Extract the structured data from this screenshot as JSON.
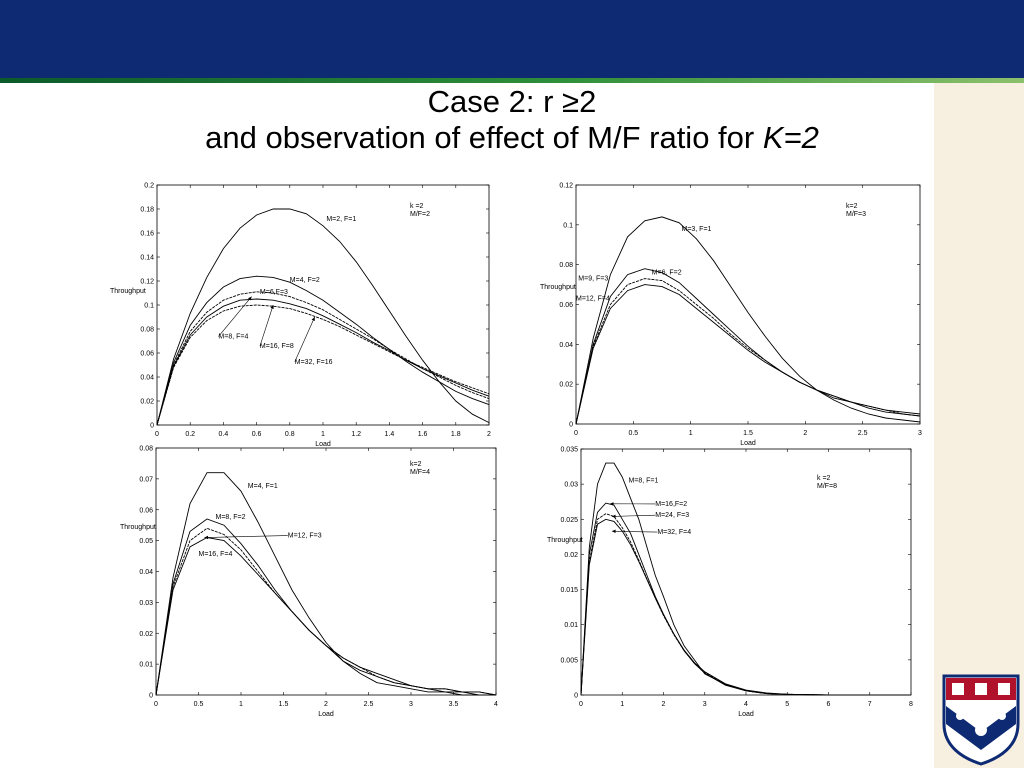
{
  "slide": {
    "title_line1": "Case 2: r ≥2",
    "title_line2_prefix": "and observation of effect of M/F ratio for ",
    "title_line2_italic": "K=2",
    "colors": {
      "header": "#0d2a73",
      "rule": "#2f8f3a",
      "strip": "#f7f0e0"
    },
    "logo": "university-shield-icon"
  },
  "chart_data": [
    {
      "type": "line",
      "xlabel": "Load",
      "ylabel": "Throughput",
      "xlim": [
        0,
        2
      ],
      "ylim": [
        0,
        0.2
      ],
      "xticks": [
        "0",
        "0.2",
        "0.4",
        "0.6",
        "0.8",
        "1",
        "1.2",
        "1.4",
        "1.6",
        "1.8",
        "2"
      ],
      "yticks": [
        "0",
        "0.02",
        "0.04",
        "0.06",
        "0.08",
        "0.1",
        "0.12",
        "0.14",
        "0.16",
        "0.18",
        "0.2"
      ],
      "legend": [
        "k =2",
        "M/F=2"
      ],
      "legend_position": "top-right",
      "series": [
        {
          "name": "M=2, F=1",
          "x": [
            0,
            0.1,
            0.2,
            0.3,
            0.4,
            0.5,
            0.6,
            0.7,
            0.8,
            0.9,
            1.0,
            1.1,
            1.2,
            1.3,
            1.4,
            1.5,
            1.6,
            1.7,
            1.8,
            1.9,
            2.0
          ],
          "y": [
            0,
            0.055,
            0.093,
            0.123,
            0.147,
            0.164,
            0.175,
            0.18,
            0.18,
            0.176,
            0.166,
            0.153,
            0.136,
            0.116,
            0.095,
            0.074,
            0.054,
            0.036,
            0.02,
            0.009,
            0.002
          ]
        },
        {
          "name": "M=4, F=2",
          "x": [
            0,
            0.1,
            0.2,
            0.3,
            0.4,
            0.5,
            0.6,
            0.7,
            0.8,
            0.9,
            1.0,
            1.1,
            1.2,
            1.3,
            1.4,
            1.5,
            1.6,
            1.7,
            1.8,
            1.9,
            2.0
          ],
          "y": [
            0,
            0.052,
            0.083,
            0.102,
            0.115,
            0.122,
            0.124,
            0.123,
            0.119,
            0.112,
            0.104,
            0.094,
            0.084,
            0.073,
            0.063,
            0.053,
            0.044,
            0.036,
            0.028,
            0.022,
            0.017
          ]
        },
        {
          "name": "M=8,F=4",
          "x": [
            0,
            0.1,
            0.2,
            0.3,
            0.4,
            0.5,
            0.6,
            0.7,
            0.8,
            0.9,
            1.0,
            1.1,
            1.2,
            1.3,
            1.4,
            1.5,
            1.6,
            1.7,
            1.8,
            1.9,
            2.0
          ],
          "y": [
            0,
            0.05,
            0.078,
            0.094,
            0.104,
            0.109,
            0.111,
            0.11,
            0.107,
            0.102,
            0.096,
            0.088,
            0.08,
            0.072,
            0.063,
            0.055,
            0.047,
            0.04,
            0.033,
            0.027,
            0.022
          ]
        },
        {
          "name": "M=16, F=8",
          "x": [
            0,
            0.1,
            0.2,
            0.3,
            0.4,
            0.5,
            0.6,
            0.7,
            0.8,
            0.9,
            1.0,
            1.1,
            1.2,
            1.3,
            1.4,
            1.5,
            1.6,
            1.7,
            1.8,
            1.9,
            2.0
          ],
          "y": [
            0,
            0.049,
            0.075,
            0.09,
            0.099,
            0.104,
            0.105,
            0.104,
            0.101,
            0.097,
            0.091,
            0.084,
            0.077,
            0.069,
            0.062,
            0.054,
            0.047,
            0.041,
            0.035,
            0.029,
            0.024
          ]
        },
        {
          "name": "M=32, F=16",
          "x": [
            0,
            0.1,
            0.2,
            0.3,
            0.4,
            0.5,
            0.6,
            0.7,
            0.8,
            0.9,
            1.0,
            1.1,
            1.2,
            1.3,
            1.4,
            1.5,
            1.6,
            1.7,
            1.8,
            1.9,
            2.0
          ],
          "y": [
            0,
            0.048,
            0.073,
            0.087,
            0.095,
            0.099,
            0.1,
            0.099,
            0.097,
            0.093,
            0.088,
            0.082,
            0.075,
            0.068,
            0.061,
            0.054,
            0.048,
            0.042,
            0.036,
            0.031,
            0.026
          ]
        }
      ],
      "annotations": [
        {
          "text": "M=2, F=1",
          "x": 1.02,
          "y": 0.17
        },
        {
          "text": "M=4, F=2",
          "x": 0.8,
          "y": 0.119
        },
        {
          "text": "M=6,F=3",
          "x": 0.62,
          "y": 0.109
        },
        {
          "text": "M=8, F=4",
          "x": 0.37,
          "y": 0.072,
          "arrow_to": [
            0.57,
            0.107
          ]
        },
        {
          "text": "M=16, F=8",
          "x": 0.62,
          "y": 0.064,
          "arrow_to": [
            0.7,
            0.1
          ]
        },
        {
          "text": "M=32, F=16",
          "x": 0.83,
          "y": 0.051,
          "arrow_to": [
            0.95,
            0.09
          ]
        }
      ]
    },
    {
      "type": "line",
      "xlabel": "Load",
      "ylabel": "Throughput",
      "xlim": [
        0,
        3
      ],
      "ylim": [
        0,
        0.12
      ],
      "xticks": [
        "0",
        "0.5",
        "1",
        "1.5",
        "2",
        "2.5",
        "3"
      ],
      "yticks": [
        "0",
        "0.02",
        "0.04",
        "0.06",
        "0.08",
        "0.1",
        "0.12"
      ],
      "legend": [
        "k=2",
        "M/F=3"
      ],
      "legend_position": "top-right",
      "series": [
        {
          "name": "M=3, F=1",
          "x": [
            0,
            0.15,
            0.3,
            0.45,
            0.6,
            0.75,
            0.9,
            1.05,
            1.2,
            1.35,
            1.5,
            1.65,
            1.8,
            1.95,
            2.1,
            2.25,
            2.4,
            2.55,
            2.7,
            2.85,
            3.0
          ],
          "y": [
            0,
            0.043,
            0.075,
            0.094,
            0.102,
            0.104,
            0.101,
            0.093,
            0.082,
            0.069,
            0.056,
            0.044,
            0.033,
            0.024,
            0.017,
            0.012,
            0.008,
            0.005,
            0.003,
            0.002,
            0.001
          ]
        },
        {
          "name": "M=6, F=2",
          "x": [
            0,
            0.15,
            0.3,
            0.45,
            0.6,
            0.75,
            0.9,
            1.05,
            1.2,
            1.35,
            1.5,
            1.65,
            1.8,
            1.95,
            2.1,
            2.25,
            2.4,
            2.55,
            2.7,
            2.85,
            3.0
          ],
          "y": [
            0,
            0.04,
            0.064,
            0.075,
            0.078,
            0.076,
            0.071,
            0.063,
            0.055,
            0.047,
            0.039,
            0.032,
            0.026,
            0.021,
            0.017,
            0.013,
            0.011,
            0.008,
            0.006,
            0.005,
            0.004
          ]
        },
        {
          "name": "M=9, F=3",
          "x": [
            0,
            0.15,
            0.3,
            0.45,
            0.6,
            0.75,
            0.9,
            1.05,
            1.2,
            1.35,
            1.5,
            1.65,
            1.8,
            1.95,
            2.1,
            2.25,
            2.4,
            2.55,
            2.7,
            2.85,
            3.0
          ],
          "y": [
            0,
            0.039,
            0.06,
            0.07,
            0.073,
            0.072,
            0.067,
            0.06,
            0.053,
            0.045,
            0.038,
            0.032,
            0.026,
            0.021,
            0.017,
            0.014,
            0.011,
            0.009,
            0.007,
            0.005,
            0.004
          ]
        },
        {
          "name": "M=12, F=4",
          "x": [
            0,
            0.15,
            0.3,
            0.45,
            0.6,
            0.75,
            0.9,
            1.05,
            1.2,
            1.35,
            1.5,
            1.65,
            1.8,
            1.95,
            2.1,
            2.25,
            2.4,
            2.55,
            2.7,
            2.85,
            3.0
          ],
          "y": [
            0,
            0.038,
            0.058,
            0.067,
            0.07,
            0.069,
            0.065,
            0.058,
            0.051,
            0.044,
            0.037,
            0.031,
            0.026,
            0.021,
            0.017,
            0.014,
            0.011,
            0.009,
            0.007,
            0.006,
            0.005
          ]
        }
      ],
      "annotations": [
        {
          "text": "M=3, F=1",
          "x": 0.92,
          "y": 0.097
        },
        {
          "text": "M=6, F=2",
          "x": 0.66,
          "y": 0.075
        },
        {
          "text": "M=9, F=3",
          "x": 0.02,
          "y": 0.072
        },
        {
          "text": "M=12, F=4",
          "x": 0.0,
          "y": 0.062
        }
      ]
    },
    {
      "type": "line",
      "xlabel": "Load",
      "ylabel": "Throughput",
      "xlim": [
        0,
        4
      ],
      "ylim": [
        0,
        0.08
      ],
      "xticks": [
        "0",
        "0.5",
        "1",
        "1.5",
        "2",
        "2.5",
        "3",
        "3.5",
        "4"
      ],
      "yticks": [
        "0",
        "0.01",
        "0.02",
        "0.03",
        "0.04",
        "0.05",
        "0.06",
        "0.07",
        "0.08"
      ],
      "legend": [
        "k=2",
        "M/F=4"
      ],
      "legend_position": "top-right",
      "series": [
        {
          "name": "M=4, F=1",
          "x": [
            0,
            0.2,
            0.4,
            0.6,
            0.8,
            1.0,
            1.2,
            1.4,
            1.6,
            1.8,
            2.0,
            2.2,
            2.4,
            2.6,
            2.8,
            3.0,
            3.2,
            3.4,
            3.6,
            3.8,
            4.0
          ],
          "y": [
            0,
            0.038,
            0.062,
            0.072,
            0.072,
            0.066,
            0.056,
            0.045,
            0.034,
            0.025,
            0.017,
            0.011,
            0.007,
            0.004,
            0.003,
            0.002,
            0.001,
            0.001,
            0,
            0,
            0
          ]
        },
        {
          "name": "M=8, F=2",
          "x": [
            0,
            0.2,
            0.4,
            0.6,
            0.8,
            1.0,
            1.2,
            1.4,
            1.6,
            1.8,
            2.0,
            2.2,
            2.4,
            2.6,
            2.8,
            3.0,
            3.2,
            3.4,
            3.6,
            3.8,
            4.0
          ],
          "y": [
            0,
            0.036,
            0.053,
            0.057,
            0.055,
            0.049,
            0.042,
            0.034,
            0.027,
            0.021,
            0.016,
            0.011,
            0.008,
            0.006,
            0.004,
            0.003,
            0.002,
            0.001,
            0.001,
            0,
            0
          ]
        },
        {
          "name": "M=12, F=3",
          "x": [
            0,
            0.2,
            0.4,
            0.6,
            0.8,
            1.0,
            1.2,
            1.4,
            1.6,
            1.8,
            2.0,
            2.2,
            2.4,
            2.6,
            2.8,
            3.0,
            3.2,
            3.4,
            3.6,
            3.8,
            4.0
          ],
          "y": [
            0,
            0.035,
            0.05,
            0.054,
            0.052,
            0.047,
            0.04,
            0.033,
            0.027,
            0.021,
            0.016,
            0.012,
            0.009,
            0.006,
            0.004,
            0.003,
            0.002,
            0.002,
            0.001,
            0.001,
            0
          ]
        },
        {
          "name": "M=16, F=4",
          "x": [
            0,
            0.2,
            0.4,
            0.6,
            0.8,
            1.0,
            1.2,
            1.4,
            1.6,
            1.8,
            2.0,
            2.2,
            2.4,
            2.6,
            2.8,
            3.0,
            3.2,
            3.4,
            3.6,
            3.8,
            4.0
          ],
          "y": [
            0,
            0.034,
            0.048,
            0.051,
            0.05,
            0.045,
            0.039,
            0.033,
            0.027,
            0.021,
            0.016,
            0.012,
            0.009,
            0.007,
            0.005,
            0.003,
            0.002,
            0.002,
            0.001,
            0.001,
            0
          ]
        }
      ],
      "annotations": [
        {
          "text": "M=4, F=1",
          "x": 1.08,
          "y": 0.067
        },
        {
          "text": "M=8, F=2",
          "x": 0.7,
          "y": 0.057
        },
        {
          "text": "M=12, F=3",
          "x": 1.55,
          "y": 0.051,
          "arrow_to": [
            0.57,
            0.051
          ]
        },
        {
          "text": "M=16, F=4",
          "x": 0.5,
          "y": 0.045
        }
      ]
    },
    {
      "type": "line",
      "xlabel": "Load",
      "ylabel": "Throughput",
      "xlim": [
        0,
        8
      ],
      "ylim": [
        0,
        0.035
      ],
      "xticks": [
        "0",
        "1",
        "2",
        "3",
        "4",
        "5",
        "6",
        "7",
        "8"
      ],
      "yticks": [
        "0",
        "0.005",
        "0.01",
        "0.015",
        "0.02",
        "0.025",
        "0.03",
        "0.035"
      ],
      "legend": [
        "k =2",
        "M/F=8"
      ],
      "legend_position": "top-right",
      "series": [
        {
          "name": "M=8, F=1",
          "x": [
            0,
            0.2,
            0.4,
            0.6,
            0.8,
            1.0,
            1.2,
            1.4,
            1.6,
            1.8,
            2.0,
            2.25,
            2.5,
            2.75,
            3.0,
            3.5,
            4.0,
            4.5,
            5.0,
            6.0,
            8.0
          ],
          "y": [
            0,
            0.021,
            0.03,
            0.033,
            0.033,
            0.031,
            0.028,
            0.025,
            0.021,
            0.017,
            0.014,
            0.01,
            0.007,
            0.005,
            0.003,
            0.0015,
            0.0006,
            0.0002,
            0.0001,
            0,
            0
          ]
        },
        {
          "name": "M=16,F=2",
          "x": [
            0,
            0.2,
            0.4,
            0.6,
            0.8,
            1.0,
            1.2,
            1.4,
            1.6,
            1.8,
            2.0,
            2.25,
            2.5,
            2.75,
            3.0,
            3.5,
            4.0,
            4.5,
            5.0,
            6.0,
            8.0
          ],
          "y": [
            0,
            0.02,
            0.026,
            0.0273,
            0.027,
            0.025,
            0.023,
            0.02,
            0.017,
            0.014,
            0.0115,
            0.0087,
            0.0063,
            0.0045,
            0.0031,
            0.0014,
            0.0006,
            0.0002,
            0.0001,
            0,
            0
          ]
        },
        {
          "name": "M=24, F=3",
          "x": [
            0,
            0.2,
            0.4,
            0.6,
            0.8,
            1.0,
            1.2,
            1.4,
            1.6,
            1.8,
            2.0,
            2.25,
            2.5,
            2.75,
            3.0,
            3.5,
            4.0,
            4.5,
            5.0,
            6.0,
            8.0
          ],
          "y": [
            0,
            0.019,
            0.025,
            0.0258,
            0.0254,
            0.0238,
            0.0218,
            0.0192,
            0.0165,
            0.0138,
            0.0113,
            0.0086,
            0.0063,
            0.0045,
            0.0032,
            0.0015,
            0.0006,
            0.0002,
            0.0001,
            0,
            0
          ]
        },
        {
          "name": "M=32, F=4",
          "x": [
            0,
            0.2,
            0.4,
            0.6,
            0.8,
            1.0,
            1.2,
            1.4,
            1.6,
            1.8,
            2.0,
            2.25,
            2.5,
            2.75,
            3.0,
            3.5,
            4.0,
            4.5,
            5.0,
            6.0,
            8.0
          ],
          "y": [
            0,
            0.0185,
            0.0243,
            0.025,
            0.0247,
            0.0233,
            0.0214,
            0.019,
            0.0164,
            0.0138,
            0.0114,
            0.0087,
            0.0064,
            0.0046,
            0.0033,
            0.0016,
            0.0007,
            0.0003,
            0.0001,
            0,
            0
          ]
        }
      ],
      "annotations": [
        {
          "text": "M=8, F=1",
          "x": 1.15,
          "y": 0.0302
        },
        {
          "text": "M=16,F=2",
          "x": 1.8,
          "y": 0.0269,
          "arrow_to": [
            0.7,
            0.0272
          ]
        },
        {
          "text": "M=24, F=3",
          "x": 1.8,
          "y": 0.0253,
          "arrow_to": [
            0.75,
            0.0254
          ]
        },
        {
          "text": "M=32, F=4",
          "x": 1.85,
          "y": 0.0229,
          "arrow_to": [
            0.75,
            0.0233
          ]
        }
      ]
    }
  ]
}
